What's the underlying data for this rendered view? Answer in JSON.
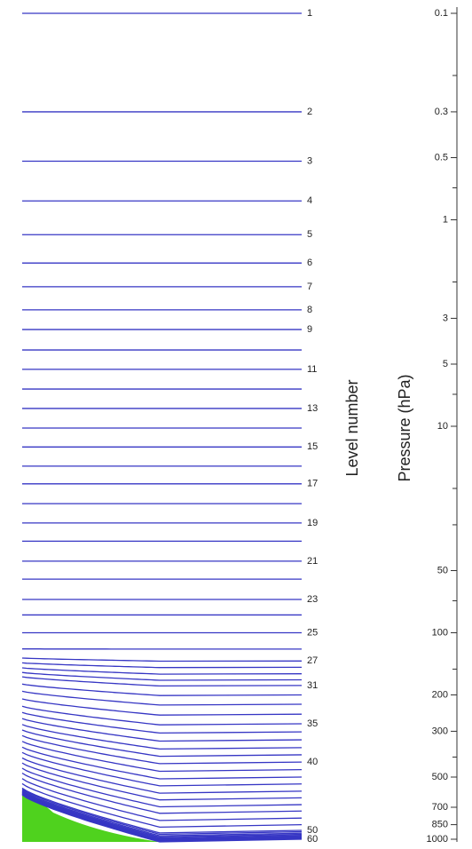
{
  "chart_data": {
    "type": "levels",
    "y_label": "Level number",
    "y2_label": "Pressure (hPa)",
    "color": "#3636c4",
    "log_scale": true,
    "ylim": [
      0.1,
      1000
    ],
    "yticks": [
      0.1,
      0.3,
      0.5,
      1,
      3,
      5,
      10,
      50,
      100,
      200,
      300,
      500,
      700,
      850,
      1000
    ],
    "yticks_minor": [
      0.2,
      0.7,
      2,
      7,
      20,
      30,
      70,
      150,
      400
    ],
    "level_labels": [
      "1",
      "2",
      "3",
      "4",
      "5",
      "6",
      "7",
      "8",
      "9",
      null,
      "11",
      null,
      "13",
      null,
      "15",
      null,
      "17",
      null,
      "19",
      null,
      "21",
      null,
      "23",
      null,
      "25",
      null,
      "27",
      null,
      null,
      null,
      "31",
      null,
      null,
      null,
      "35",
      null,
      null,
      null,
      null,
      "40",
      null,
      null,
      null,
      null,
      null,
      null,
      null,
      null,
      null,
      "50",
      null,
      null,
      null,
      null,
      null,
      null,
      null,
      null,
      null,
      "60"
    ],
    "pressures": [
      0.1,
      0.3,
      0.52,
      0.81,
      1.18,
      1.62,
      2.11,
      2.73,
      3.4,
      4.27,
      5.3,
      6.6,
      8.2,
      10.2,
      12.6,
      15.6,
      19,
      23.7,
      29.4,
      36,
      45,
      55,
      69,
      82,
      100,
      120,
      137,
      147,
      158,
      169,
      180,
      200,
      222,
      248,
      276,
      302,
      330,
      360,
      390,
      423,
      460,
      500,
      540,
      585,
      630,
      680,
      730,
      790,
      850,
      906,
      920,
      935,
      947,
      958,
      968,
      976,
      983,
      989,
      995,
      1000
    ]
  }
}
